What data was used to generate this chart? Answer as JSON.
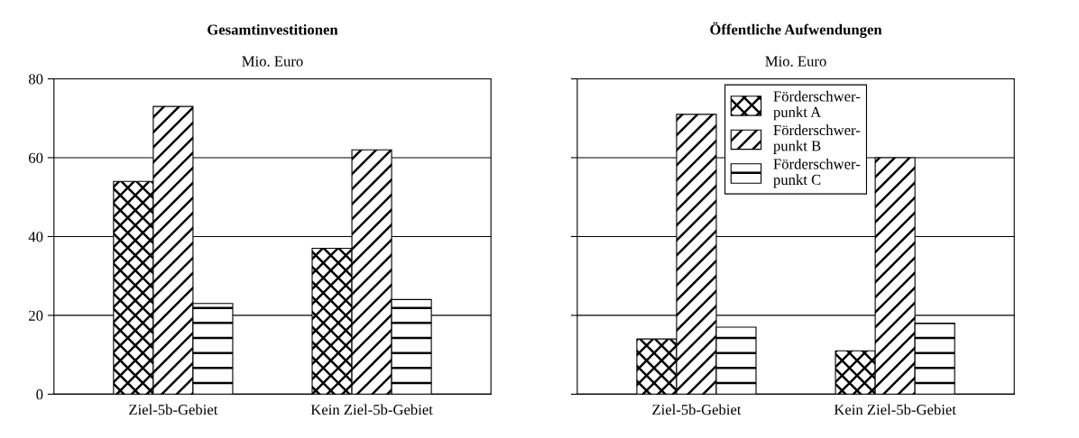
{
  "chart_data": [
    {
      "type": "bar",
      "title": "Gesamtinvestitionen",
      "subtitle": "Mio. Euro",
      "categories": [
        "Ziel-5b-Gebiet",
        "Kein Ziel-5b-Gebiet"
      ],
      "series": [
        {
          "color": "#000000",
          "values": [
            54,
            37
          ]
        },
        {
          "color": "#000000",
          "values": [
            73,
            62
          ]
        },
        {
          "color": "#000000",
          "values": [
            23,
            24
          ]
        }
      ],
      "ylim": [
        0,
        80
      ],
      "yticks": [
        0,
        20,
        40,
        60,
        80
      ],
      "grid": "y",
      "legend": false
    },
    {
      "type": "bar",
      "title": "Öffentliche Aufwendungen",
      "subtitle": "Mio. Euro",
      "categories": [
        "Ziel-5b-Gebiet",
        "Kein Ziel-5b-Gebiet"
      ],
      "series": [
        {
          "name": "Förderschwer-\npunkt A",
          "color": "#000000",
          "values": [
            14,
            11
          ]
        },
        {
          "name": "Förderschwer-\npunkt B",
          "color": "#000000",
          "values": [
            71,
            60
          ]
        },
        {
          "name": "Förderschwer-\npunkt C",
          "color": "#000000",
          "values": [
            17,
            18
          ]
        }
      ],
      "ylim": [
        0,
        80
      ],
      "yticks": [
        0,
        20,
        40,
        60,
        80
      ],
      "grid": "y",
      "legend": "top",
      "tick_labels": "x"
    }
  ]
}
